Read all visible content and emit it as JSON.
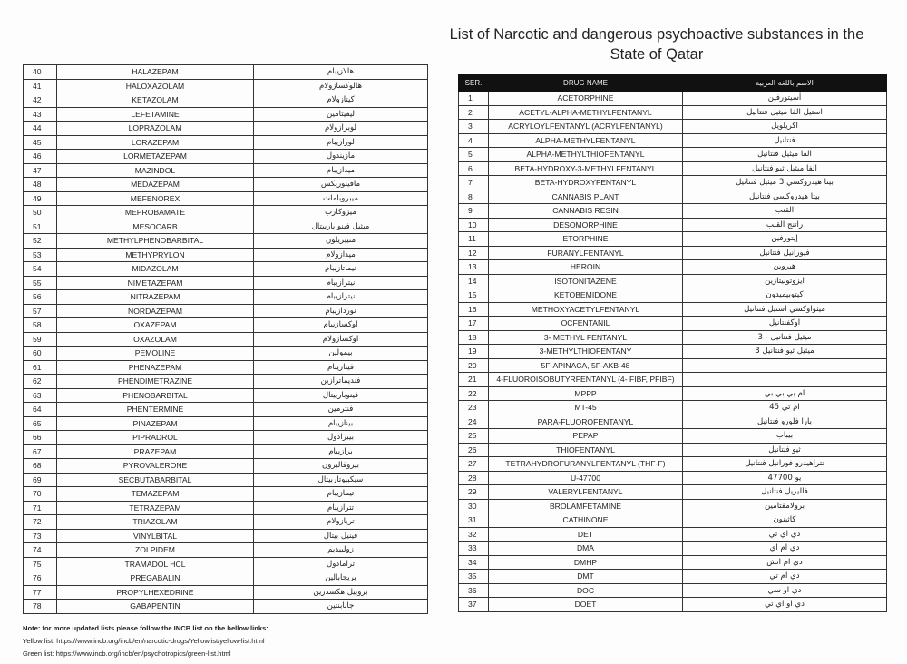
{
  "title_line1": "List of Narcotic and dangerous psychoactive substances in the",
  "title_line2": "State of  Qatar",
  "headers": {
    "ser": "SER.",
    "name": "DRUG NAME",
    "arabic": "الاسم باللغة العربية"
  },
  "left_rows": [
    [
      "40",
      "HALAZEPAM",
      "هالازيبام"
    ],
    [
      "41",
      "HALOXAZOLAM",
      "هالوكسازولام"
    ],
    [
      "42",
      "KETAZOLAM",
      "كيتازولام"
    ],
    [
      "43",
      "LEFETAMINE",
      "ليفيتامين"
    ],
    [
      "44",
      "LOPRAZOLAM",
      "لوبرازولام"
    ],
    [
      "45",
      "LORAZEPAM",
      "لورازيبام"
    ],
    [
      "46",
      "LORMETAZEPAM",
      "مازيندول"
    ],
    [
      "47",
      "MAZINDOL",
      "ميدازيبام"
    ],
    [
      "48",
      "MEDAZEPAM",
      "مافينوريكس"
    ],
    [
      "49",
      "MEFENOREX",
      "ميبروبامات"
    ],
    [
      "50",
      "MEPROBAMATE",
      "ميزوكارب"
    ],
    [
      "51",
      "MESOCARB",
      "ميثيل فينو باربيتال"
    ],
    [
      "52",
      "METHYLPHENOBARBITAL",
      "متيبريلون"
    ],
    [
      "53",
      "METHYPRYLON",
      "ميدازولام"
    ],
    [
      "54",
      "MIDAZOLAM",
      "نيماتازيبام"
    ],
    [
      "55",
      "NIMETAZEPAM",
      "نيترازيبام"
    ],
    [
      "56",
      "NITRAZEPAM",
      "نيترازيبام"
    ],
    [
      "57",
      "NORDAZEPAM",
      "نوردازيبام"
    ],
    [
      "58",
      "OXAZEPAM",
      "اوكسازيبام"
    ],
    [
      "59",
      "OXAZOLAM",
      "اوكسازولام"
    ],
    [
      "60",
      "PEMOLINE",
      "بيمولين"
    ],
    [
      "61",
      "PHENAZEPAM",
      "فينازيبام"
    ],
    [
      "62",
      "PHENDIMETRAZINE",
      "فنديماترازين"
    ],
    [
      "63",
      "PHENOBARBITAL",
      "فينوباربيتال"
    ],
    [
      "64",
      "PHENTERMINE",
      "فنترمين"
    ],
    [
      "65",
      "PINAZEPAM",
      "بينازيبام"
    ],
    [
      "66",
      "PIPRADROL",
      "بيبرادول"
    ],
    [
      "67",
      "PRAZEPAM",
      "برازيبام"
    ],
    [
      "68",
      "PYROVALERONE",
      "بيروفاليرون"
    ],
    [
      "69",
      "SECBUTABARBITAL",
      "سيكبيوتاربيتال"
    ],
    [
      "70",
      "TEMAZEPAM",
      "تيمازيبام"
    ],
    [
      "71",
      "TETRAZEPAM",
      "تترازيبام"
    ],
    [
      "72",
      "TRIAZOLAM",
      "تريازولام"
    ],
    [
      "73",
      "VINYLBITAL",
      "فينيل بيتال"
    ],
    [
      "74",
      "ZOLPIDEM",
      "زولبيديم"
    ],
    [
      "75",
      "TRAMADOL HCL",
      "ترامادول"
    ],
    [
      "76",
      "PREGABALIN",
      "بريجابالين"
    ],
    [
      "77",
      "PROPYLHEXEDRINE",
      "بروبيل هكسدرين"
    ],
    [
      "78",
      "GABAPENTIN",
      "جابابنتين"
    ]
  ],
  "right_rows": [
    [
      "1",
      "ACETORPHINE",
      "أسيتورفين"
    ],
    [
      "2",
      "ACETYL-ALPHA-METHYLFENTANYL",
      "استيل الفا ميثيل فنتانيل"
    ],
    [
      "3",
      "ACRYLOYLFENTANYL (ACRYLFENTANYL)",
      "اكريلويل"
    ],
    [
      "4",
      "ALPHA-METHYLFENTANYL",
      "فنتانيل"
    ],
    [
      "5",
      "ALPHA-METHYLTHIOFENTANYL",
      "الفا ميثيل فنتانيل"
    ],
    [
      "6",
      "BETA-HYDROXY-3-METHYLFENTANYL",
      "الفا ميثيل ثيو فنتانيل"
    ],
    [
      "7",
      "BETA-HYDROXYFENTANYL",
      "بيتا هيدروكسي 3 ميثيل فنتانيل"
    ],
    [
      "8",
      "CANNABIS  PLANT",
      "بيتا هيدروكسي فنتانيل"
    ],
    [
      "9",
      "CANNABIS RESIN",
      "القنب"
    ],
    [
      "10",
      "DESOMORPHINE",
      "راتنج القنب"
    ],
    [
      "11",
      "ETORPHINE",
      "إيتورفين"
    ],
    [
      "12",
      "FURANYLFENTANYL",
      "فيورانيل فنتانيل"
    ],
    [
      "13",
      "HEROIN",
      "هيروين"
    ],
    [
      "14",
      "ISOTONITAZENE",
      "ايزوتونيتازين"
    ],
    [
      "15",
      "KETOBEMIDONE",
      "كيتوبيميدون"
    ],
    [
      "16",
      "METHOXYACETYLFENTANYL",
      "ميثواوكسي استيل فنتانيل"
    ],
    [
      "17",
      "OCFENTANIL",
      "اوكفنتانيل"
    ],
    [
      "18",
      "3- METHYL FENTANYL",
      "ميثيل فنتانيل - 3"
    ],
    [
      "19",
      "3-METHYLTHIOFENTANY",
      "ميثيل ثيو فنتانيل 3"
    ],
    [
      "20",
      "5F-APINACA, 5F-AKB-48",
      ""
    ],
    [
      "21",
      "4-FLUOROISOBUTYRFENTANYL (4- FIBF, PFIBF)",
      ""
    ],
    [
      "22",
      "MPPP",
      "ام بي بي بي"
    ],
    [
      "23",
      "MT-45",
      "ام تي 45"
    ],
    [
      "24",
      "PARA-FLUOROFENTANYL",
      "بارا فلورو فنتانيل"
    ],
    [
      "25",
      "PEPAP",
      "بيباب"
    ],
    [
      "26",
      "THIOFENTANYL",
      "ثيو فنتانيل"
    ],
    [
      "27",
      "TETRAHYDROFURANYLFENTANYL (THF-F)",
      "تتراهيدرو فورانيل فنتانيل"
    ],
    [
      "28",
      "U-47700",
      "يو 47700"
    ],
    [
      "29",
      "VALERYLFENTANYL",
      "فاليريل فنتانيل"
    ],
    [
      "30",
      "BROLAMFETAMINE",
      "برولامفتامين"
    ],
    [
      "31",
      "CATHINONE",
      "كاثينون"
    ],
    [
      "32",
      "DET",
      "دي اي تي"
    ],
    [
      "33",
      "DMA",
      "دي ام اي"
    ],
    [
      "34",
      "DMHP",
      "دي ام اتش"
    ],
    [
      "35",
      "DMT",
      "دي ام تي"
    ],
    [
      "36",
      "DOC",
      "دي او سي"
    ],
    [
      "37",
      "DOET",
      "دي او اي تي"
    ]
  ],
  "note": {
    "heading": "Note: for more updated lists please follow the INCB list on the bellow links:",
    "yellow": "Yellow list:  https://www.incb.org/incb/en/narcotic-drugs/Yellowlist/yellow-list.html",
    "green": "Green list: https://www.incb.org/incb/en/psychotropics/green-list.html"
  }
}
